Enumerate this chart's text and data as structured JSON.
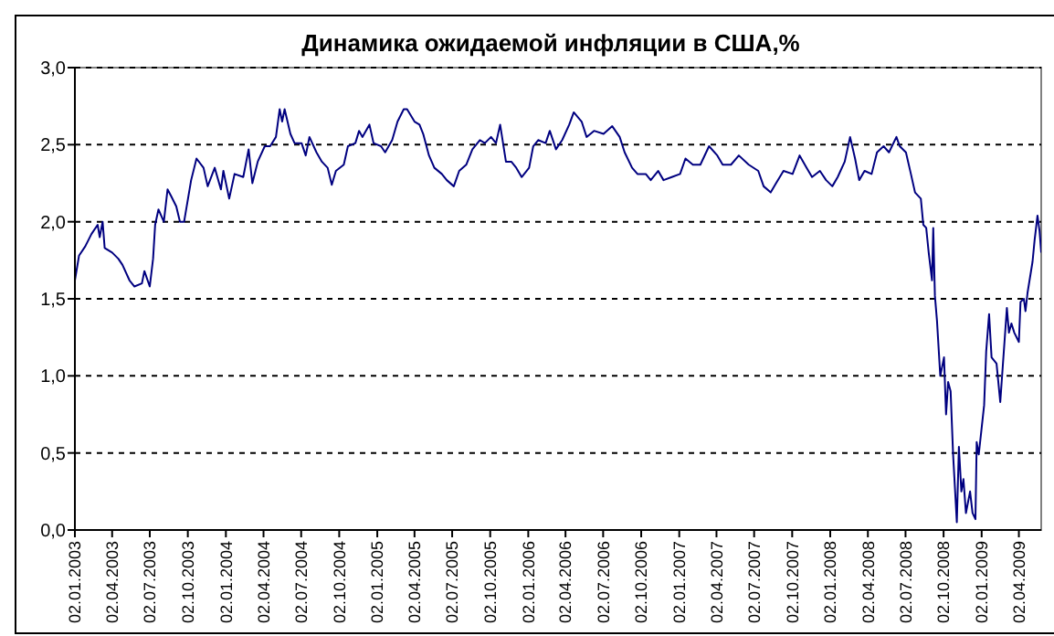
{
  "chart_data": {
    "type": "line",
    "title": "Динамика ожидаемой инфляции в США,%",
    "x": [
      "2003-01-02",
      "2003-01-12",
      "2003-01-27",
      "2003-02-11",
      "2003-02-26",
      "2003-03-03",
      "2003-03-10",
      "2003-03-15",
      "2003-04-02",
      "2003-04-17",
      "2003-04-27",
      "2003-05-14",
      "2003-05-26",
      "2003-06-13",
      "2003-06-19",
      "2003-07-02",
      "2003-07-10",
      "2003-07-15",
      "2003-07-23",
      "2003-08-05",
      "2003-08-14",
      "2003-08-22",
      "2003-09-04",
      "2003-09-13",
      "2003-09-23",
      "2003-10-10",
      "2003-10-23",
      "2003-11-09",
      "2003-11-19",
      "2003-12-06",
      "2003-12-21",
      "2003-12-27",
      "2004-01-10",
      "2004-01-23",
      "2004-02-13",
      "2004-02-26",
      "2004-03-06",
      "2004-03-19",
      "2004-04-05",
      "2004-04-18",
      "2004-05-02",
      "2004-05-11",
      "2004-05-17",
      "2004-05-23",
      "2004-06-06",
      "2004-06-16",
      "2004-07-03",
      "2004-07-13",
      "2004-07-22",
      "2004-08-08",
      "2004-08-21",
      "2004-09-04",
      "2004-09-14",
      "2004-09-24",
      "2004-10-13",
      "2004-10-23",
      "2004-11-10",
      "2004-11-19",
      "2004-11-27",
      "2004-12-14",
      "2004-12-24",
      "2005-01-11",
      "2005-01-21",
      "2005-02-07",
      "2005-02-20",
      "2005-03-07",
      "2005-03-15",
      "2005-04-02",
      "2005-04-14",
      "2005-04-23",
      "2005-05-07",
      "2005-05-20",
      "2005-06-07",
      "2005-06-19",
      "2005-07-06",
      "2005-07-19",
      "2005-08-05",
      "2005-08-20",
      "2005-09-07",
      "2005-09-19",
      "2005-10-04",
      "2005-10-16",
      "2005-10-26",
      "2005-11-09",
      "2005-11-22",
      "2005-12-04",
      "2005-12-17",
      "2006-01-04",
      "2006-01-14",
      "2006-01-26",
      "2006-02-13",
      "2006-02-23",
      "2006-03-10",
      "2006-03-25",
      "2006-04-11",
      "2006-04-22",
      "2006-05-11",
      "2006-05-23",
      "2006-06-10",
      "2006-07-03",
      "2006-07-24",
      "2006-08-11",
      "2006-08-23",
      "2006-09-10",
      "2006-09-23",
      "2006-10-13",
      "2006-10-25",
      "2006-11-12",
      "2006-11-25",
      "2006-12-15",
      "2007-01-04",
      "2007-01-17",
      "2007-02-04",
      "2007-02-22",
      "2007-03-15",
      "2007-04-04",
      "2007-04-17",
      "2007-05-07",
      "2007-05-26",
      "2007-06-19",
      "2007-07-12",
      "2007-07-25",
      "2007-08-11",
      "2007-08-24",
      "2007-09-11",
      "2007-10-03",
      "2007-10-20",
      "2007-11-06",
      "2007-11-19",
      "2007-12-08",
      "2007-12-23",
      "2008-01-07",
      "2008-01-20",
      "2008-02-06",
      "2008-02-19",
      "2008-03-02",
      "2008-03-12",
      "2008-03-25",
      "2008-04-11",
      "2008-04-24",
      "2008-05-10",
      "2008-05-23",
      "2008-06-10",
      "2008-06-18",
      "2008-07-03",
      "2008-07-15",
      "2008-07-25",
      "2008-08-08",
      "2008-08-14",
      "2008-08-21",
      "2008-08-27",
      "2008-09-04",
      "2008-09-07",
      "2008-09-11",
      "2008-09-16",
      "2008-09-24",
      "2008-10-03",
      "2008-10-08",
      "2008-10-13",
      "2008-10-19",
      "2008-10-25",
      "2008-11-03",
      "2008-11-08",
      "2008-11-14",
      "2008-11-19",
      "2008-11-25",
      "2008-12-05",
      "2008-12-11",
      "2008-12-18",
      "2008-12-21",
      "2008-12-26",
      "2009-01-08",
      "2009-01-13",
      "2009-01-20",
      "2009-01-26",
      "2009-02-07",
      "2009-02-16",
      "2009-02-22",
      "2009-03-04",
      "2009-03-09",
      "2009-03-15",
      "2009-03-22",
      "2009-04-02",
      "2009-04-06",
      "2009-04-14",
      "2009-04-18",
      "2009-04-23",
      "2009-05-05",
      "2009-05-10",
      "2009-05-17",
      "2009-05-22",
      "2009-05-26"
    ],
    "series": [
      {
        "color": "#000080",
        "values": [
          1.62,
          1.78,
          1.84,
          1.92,
          1.98,
          1.9,
          2.0,
          1.83,
          1.8,
          1.76,
          1.72,
          1.62,
          1.58,
          1.6,
          1.68,
          1.58,
          1.76,
          1.98,
          2.08,
          2.0,
          2.21,
          2.17,
          2.1,
          2.0,
          2.0,
          2.27,
          2.41,
          2.35,
          2.23,
          2.35,
          2.21,
          2.33,
          2.15,
          2.31,
          2.29,
          2.47,
          2.25,
          2.39,
          2.49,
          2.49,
          2.55,
          2.73,
          2.65,
          2.73,
          2.57,
          2.51,
          2.51,
          2.43,
          2.55,
          2.45,
          2.39,
          2.35,
          2.24,
          2.33,
          2.37,
          2.49,
          2.51,
          2.59,
          2.55,
          2.63,
          2.51,
          2.49,
          2.45,
          2.53,
          2.65,
          2.73,
          2.73,
          2.65,
          2.63,
          2.57,
          2.43,
          2.35,
          2.31,
          2.27,
          2.23,
          2.33,
          2.37,
          2.47,
          2.53,
          2.51,
          2.55,
          2.51,
          2.63,
          2.39,
          2.39,
          2.35,
          2.29,
          2.35,
          2.49,
          2.53,
          2.51,
          2.59,
          2.47,
          2.53,
          2.63,
          2.71,
          2.65,
          2.55,
          2.59,
          2.57,
          2.62,
          2.55,
          2.45,
          2.35,
          2.31,
          2.31,
          2.27,
          2.33,
          2.27,
          2.29,
          2.31,
          2.41,
          2.37,
          2.37,
          2.49,
          2.43,
          2.37,
          2.37,
          2.43,
          2.37,
          2.33,
          2.23,
          2.19,
          2.25,
          2.33,
          2.31,
          2.43,
          2.35,
          2.29,
          2.33,
          2.27,
          2.23,
          2.29,
          2.39,
          2.55,
          2.41,
          2.27,
          2.33,
          2.31,
          2.45,
          2.49,
          2.45,
          2.55,
          2.49,
          2.45,
          2.31,
          2.19,
          2.15,
          1.98,
          1.96,
          1.8,
          1.62,
          1.96,
          1.52,
          1.36,
          1.0,
          1.12,
          0.75,
          0.96,
          0.9,
          0.49,
          0.05,
          0.54,
          0.25,
          0.33,
          0.11,
          0.25,
          0.11,
          0.07,
          0.57,
          0.49,
          0.81,
          1.16,
          1.4,
          1.12,
          1.08,
          0.83,
          1.06,
          1.44,
          1.28,
          1.34,
          1.28,
          1.22,
          1.48,
          1.5,
          1.42,
          1.54,
          1.74,
          1.88,
          2.04,
          1.94,
          1.8
        ]
      }
    ],
    "xlim": [
      "2003-01-02",
      "2009-05-26"
    ],
    "xticks": [
      {
        "value": "2003-01-02",
        "label": "02.01.2003"
      },
      {
        "value": "2003-04-02",
        "label": "02.04.2003"
      },
      {
        "value": "2003-07-02",
        "label": "02.07.2003"
      },
      {
        "value": "2003-10-02",
        "label": "02.10.2003"
      },
      {
        "value": "2004-01-02",
        "label": "02.01.2004"
      },
      {
        "value": "2004-04-02",
        "label": "02.04.2004"
      },
      {
        "value": "2004-07-02",
        "label": "02.07.2004"
      },
      {
        "value": "2004-10-02",
        "label": "02.10.2004"
      },
      {
        "value": "2005-01-02",
        "label": "02.01.2005"
      },
      {
        "value": "2005-04-02",
        "label": "02.04.2005"
      },
      {
        "value": "2005-07-02",
        "label": "02.07.2005"
      },
      {
        "value": "2005-10-02",
        "label": "02.10.2005"
      },
      {
        "value": "2006-01-02",
        "label": "02.01.2006"
      },
      {
        "value": "2006-04-02",
        "label": "02.04.2006"
      },
      {
        "value": "2006-07-02",
        "label": "02.07.2006"
      },
      {
        "value": "2006-10-02",
        "label": "02.10.2006"
      },
      {
        "value": "2007-01-02",
        "label": "02.01.2007"
      },
      {
        "value": "2007-04-02",
        "label": "02.04.2007"
      },
      {
        "value": "2007-07-02",
        "label": "02.07.2007"
      },
      {
        "value": "2007-10-02",
        "label": "02.10.2007"
      },
      {
        "value": "2008-01-02",
        "label": "02.01.2008"
      },
      {
        "value": "2008-04-02",
        "label": "02.04.2008"
      },
      {
        "value": "2008-07-02",
        "label": "02.07.2008"
      },
      {
        "value": "2008-10-02",
        "label": "02.10.2008"
      },
      {
        "value": "2009-01-02",
        "label": "02.01.2009"
      },
      {
        "value": "2009-04-02",
        "label": "02.04.2009"
      }
    ],
    "ylim": [
      0,
      3
    ],
    "yticks": [
      {
        "value": 0,
        "label": "0,0"
      },
      {
        "value": 0.5,
        "label": "0,5"
      },
      {
        "value": 1,
        "label": "1,0"
      },
      {
        "value": 1.5,
        "label": "1,5"
      },
      {
        "value": 2,
        "label": "2,0"
      },
      {
        "value": 2.5,
        "label": "2,5"
      },
      {
        "value": 3,
        "label": "3,0"
      }
    ],
    "grid": "y",
    "line_style": "solid",
    "marker": "none"
  }
}
